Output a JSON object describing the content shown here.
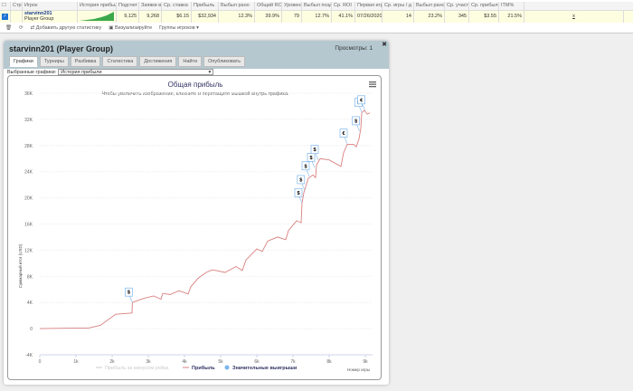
{
  "grid": {
    "headers": [
      "Стр.",
      "Игрок",
      "История прибыли",
      "Подсчет",
      "Заявки в",
      "Ср. ставка",
      "Прибыль",
      "Выбыл рано",
      "Общий ROI",
      "Уровень",
      "Выбыл поздно",
      "Ср. ROI",
      "Первая игр",
      "Ср. игры / д",
      "Выбыл рано/сч",
      "Ср. участ",
      "Ср. прибыль",
      "ITM%"
    ],
    "player_name": "starvinn201",
    "player_group": "Player Group",
    "values": [
      "9,125",
      "9,268",
      "$6.15",
      "$32,934",
      "12.3%",
      "39.9%",
      "79",
      "12.7%",
      "41.1%",
      "07/26/2020",
      "14",
      "23.2%",
      "345",
      "$3.55",
      "21.5%"
    ],
    "extra": "x",
    "checked": true
  },
  "toolbar": {
    "add_stats": "Добавить другую статистику",
    "visualize": "Визуализируйте",
    "groups": "Группы игроков"
  },
  "panel": {
    "title": "starvinn201 (Player Group)",
    "views": "Просмотры: 1",
    "tabs": [
      "Графики",
      "Турниры",
      "Разбивка",
      "Статистика",
      "Достижения",
      "Найти",
      "Опубликовать"
    ],
    "select_label": "Выбранные графики:",
    "select_value": "История прибыли"
  },
  "chart_data": {
    "type": "line",
    "title": "Общая прибыль",
    "subtitle": "Чтобы увеличить изображение, кликните и перетащите мышкой внутрь графика.",
    "xlabel": "Номер игры",
    "ylabel": "Суммарный итог (USD)",
    "xlim": [
      0,
      9000
    ],
    "ylim": [
      -4000,
      36000
    ],
    "xticks": [
      "0",
      "1k",
      "2k",
      "3k",
      "4k",
      "5k",
      "6k",
      "7k",
      "8k",
      "9k"
    ],
    "yticks": [
      "-4K",
      "0",
      "4K",
      "8K",
      "12K",
      "16K",
      "20K",
      "24K",
      "28K",
      "32K",
      "36K"
    ],
    "grid": true,
    "legend_position": "bottom",
    "legend": [
      "Прибыль за минусом рейка",
      "Прибыль",
      "Значительные выигрыши"
    ],
    "series_color": "#d9807f",
    "flag_color": "#7cb5ec",
    "series": [
      {
        "name": "Прибыль",
        "points": [
          [
            0,
            0
          ],
          [
            1000,
            100
          ],
          [
            1350,
            100
          ],
          [
            1675,
            500
          ],
          [
            2100,
            2200
          ],
          [
            2550,
            2400
          ],
          [
            2560,
            4000
          ],
          [
            2850,
            4600
          ],
          [
            3150,
            5000
          ],
          [
            3350,
            4500
          ],
          [
            3400,
            5400
          ],
          [
            3600,
            5200
          ],
          [
            3850,
            5800
          ],
          [
            4100,
            5300
          ],
          [
            4175,
            6400
          ],
          [
            4375,
            7700
          ],
          [
            4600,
            8600
          ],
          [
            4775,
            9000
          ],
          [
            5125,
            8600
          ],
          [
            5425,
            9500
          ],
          [
            5600,
            8900
          ],
          [
            5700,
            10500
          ],
          [
            6000,
            12200
          ],
          [
            6150,
            11800
          ],
          [
            6300,
            13400
          ],
          [
            6575,
            14000
          ],
          [
            6800,
            13600
          ],
          [
            6875,
            15000
          ],
          [
            7100,
            16500
          ],
          [
            7225,
            16200
          ],
          [
            7250,
            19200
          ],
          [
            7300,
            20800
          ],
          [
            7425,
            23000
          ],
          [
            7550,
            23500
          ],
          [
            7625,
            23100
          ],
          [
            7650,
            25000
          ],
          [
            7750,
            26000
          ],
          [
            8000,
            25800
          ],
          [
            8325,
            24800
          ],
          [
            8400,
            26900
          ],
          [
            8500,
            28200
          ],
          [
            8675,
            28200
          ],
          [
            8750,
            27800
          ],
          [
            8825,
            29000
          ],
          [
            8875,
            30600
          ],
          [
            8900,
            33000
          ],
          [
            8975,
            33400
          ],
          [
            9050,
            32800
          ],
          [
            9125,
            33000
          ]
        ]
      }
    ],
    "flags": [
      {
        "x": 2560,
        "y": 4000,
        "label": "$"
      },
      {
        "x": 7250,
        "y": 19200,
        "label": "$"
      },
      {
        "x": 7320,
        "y": 21200,
        "label": "$"
      },
      {
        "x": 7450,
        "y": 23300,
        "label": "$"
      },
      {
        "x": 7600,
        "y": 24600,
        "label": "$"
      },
      {
        "x": 7700,
        "y": 25800,
        "label": "$"
      },
      {
        "x": 8500,
        "y": 28300,
        "label": "€"
      },
      {
        "x": 8840,
        "y": 30200,
        "label": "$"
      },
      {
        "x": 8910,
        "y": 33000,
        "label": "$"
      },
      {
        "x": 8990,
        "y": 33400,
        "label": "€"
      }
    ]
  }
}
